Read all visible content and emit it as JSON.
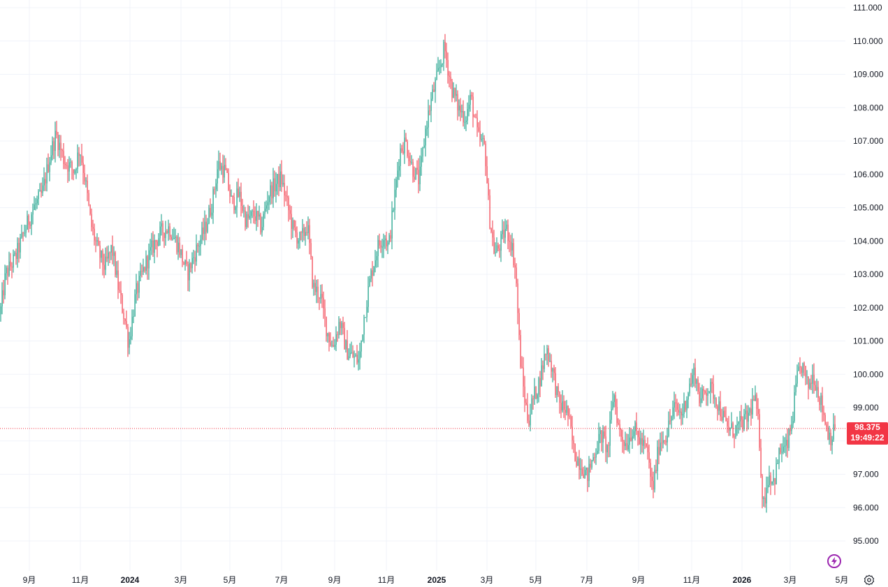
{
  "chart_data": {
    "type": "candlestick",
    "title": "",
    "y_ticks": [
      "111.000",
      "110.000",
      "109.000",
      "108.000",
      "107.000",
      "106.000",
      "105.000",
      "104.000",
      "103.000",
      "102.000",
      "101.000",
      "100.000",
      "99.000",
      "98.000",
      "97.000",
      "96.000",
      "95.000"
    ],
    "y_range": [
      94.5,
      111.2
    ],
    "x_ticks": [
      {
        "label": "9月",
        "bold": false
      },
      {
        "label": "11月",
        "bold": false
      },
      {
        "label": "2024",
        "bold": true
      },
      {
        "label": "3月",
        "bold": false
      },
      {
        "label": "5月",
        "bold": false
      },
      {
        "label": "7月",
        "bold": false
      },
      {
        "label": "9月",
        "bold": false
      },
      {
        "label": "11月",
        "bold": false
      },
      {
        "label": "2025",
        "bold": true
      },
      {
        "label": "3月",
        "bold": false
      },
      {
        "label": "5月",
        "bold": false
      },
      {
        "label": "7月",
        "bold": false
      },
      {
        "label": "9月",
        "bold": false
      },
      {
        "label": "11月",
        "bold": false
      },
      {
        "label": "2026",
        "bold": true
      },
      {
        "label": "3月",
        "bold": false
      },
      {
        "label": "5月",
        "bold": false
      }
    ],
    "price_path": [
      [
        0,
        101.8
      ],
      [
        8,
        103.0
      ],
      [
        22,
        103.5
      ],
      [
        35,
        104.3
      ],
      [
        48,
        105.0
      ],
      [
        60,
        105.4
      ],
      [
        72,
        106.6
      ],
      [
        80,
        107.2
      ],
      [
        92,
        106.4
      ],
      [
        106,
        106.1
      ],
      [
        114,
        106.8
      ],
      [
        122,
        105.8
      ],
      [
        130,
        104.5
      ],
      [
        140,
        103.7
      ],
      [
        150,
        103.2
      ],
      [
        160,
        103.8
      ],
      [
        170,
        102.5
      ],
      [
        180,
        101.5
      ],
      [
        184,
        100.9
      ],
      [
        194,
        102.4
      ],
      [
        208,
        103.3
      ],
      [
        220,
        103.9
      ],
      [
        232,
        104.3
      ],
      [
        242,
        104.4
      ],
      [
        256,
        103.8
      ],
      [
        268,
        103.0
      ],
      [
        280,
        103.7
      ],
      [
        294,
        104.4
      ],
      [
        304,
        105.2
      ],
      [
        312,
        106.3
      ],
      [
        322,
        106.1
      ],
      [
        332,
        105.1
      ],
      [
        342,
        105.4
      ],
      [
        352,
        104.6
      ],
      [
        364,
        104.8
      ],
      [
        374,
        104.4
      ],
      [
        384,
        105.4
      ],
      [
        394,
        105.7
      ],
      [
        402,
        105.9
      ],
      [
        412,
        105.0
      ],
      [
        420,
        104.3
      ],
      [
        430,
        104.0
      ],
      [
        440,
        104.5
      ],
      [
        448,
        102.6
      ],
      [
        458,
        102.4
      ],
      [
        468,
        101.3
      ],
      [
        476,
        100.8
      ],
      [
        486,
        101.6
      ],
      [
        496,
        100.7
      ],
      [
        506,
        100.5
      ],
      [
        514,
        100.4
      ],
      [
        520,
        101.6
      ],
      [
        530,
        102.9
      ],
      [
        540,
        103.8
      ],
      [
        550,
        104.2
      ],
      [
        556,
        103.8
      ],
      [
        564,
        105.2
      ],
      [
        572,
        106.7
      ],
      [
        580,
        107.0
      ],
      [
        590,
        106.2
      ],
      [
        600,
        105.8
      ],
      [
        610,
        107.5
      ],
      [
        618,
        108.3
      ],
      [
        628,
        109.1
      ],
      [
        636,
        109.8
      ],
      [
        646,
        108.6
      ],
      [
        656,
        108.0
      ],
      [
        666,
        107.7
      ],
      [
        674,
        108.3
      ],
      [
        684,
        107.1
      ],
      [
        694,
        106.8
      ],
      [
        700,
        104.8
      ],
      [
        708,
        103.6
      ],
      [
        716,
        103.9
      ],
      [
        724,
        104.4
      ],
      [
        732,
        103.9
      ],
      [
        738,
        103.1
      ],
      [
        744,
        100.6
      ],
      [
        750,
        99.4
      ],
      [
        756,
        98.6
      ],
      [
        762,
        99.2
      ],
      [
        772,
        99.8
      ],
      [
        782,
        100.8
      ],
      [
        790,
        100.2
      ],
      [
        800,
        99.1
      ],
      [
        812,
        98.9
      ],
      [
        822,
        97.6
      ],
      [
        832,
        97.3
      ],
      [
        840,
        96.9
      ],
      [
        850,
        97.6
      ],
      [
        860,
        98.2
      ],
      [
        870,
        97.7
      ],
      [
        878,
        99.5
      ],
      [
        886,
        98.3
      ],
      [
        896,
        97.9
      ],
      [
        906,
        98.4
      ],
      [
        916,
        98.0
      ],
      [
        926,
        97.7
      ],
      [
        934,
        96.5
      ],
      [
        944,
        98.0
      ],
      [
        954,
        98.2
      ],
      [
        964,
        99.0
      ],
      [
        976,
        98.8
      ],
      [
        986,
        99.6
      ],
      [
        994,
        100.1
      ],
      [
        1002,
        99.2
      ],
      [
        1012,
        99.6
      ],
      [
        1020,
        99.5
      ],
      [
        1030,
        99.0
      ],
      [
        1040,
        98.4
      ],
      [
        1050,
        98.3
      ],
      [
        1060,
        98.5
      ],
      [
        1070,
        98.7
      ],
      [
        1080,
        99.3
      ],
      [
        1086,
        98.4
      ],
      [
        1092,
        96.0
      ],
      [
        1100,
        97.0
      ],
      [
        1108,
        96.8
      ],
      [
        1116,
        97.7
      ],
      [
        1126,
        97.8
      ],
      [
        1134,
        98.6
      ],
      [
        1140,
        99.8
      ],
      [
        1148,
        100.3
      ],
      [
        1156,
        99.6
      ],
      [
        1164,
        100.0
      ],
      [
        1172,
        99.4
      ],
      [
        1178,
        98.9
      ],
      [
        1184,
        98.3
      ],
      [
        1190,
        98.1
      ],
      [
        1195,
        98.375
      ]
    ],
    "last_price": "98.375",
    "countdown": "19:49:22",
    "colors": {
      "up": "#089981",
      "down": "#f23645",
      "grid": "#f0f3fa",
      "text": "#131722",
      "badge": "#f23645",
      "bolt": "#9c27b0"
    }
  },
  "ui": {
    "bolt_icon": "lightning-bolt-icon",
    "settings_icon": "gear-icon"
  }
}
